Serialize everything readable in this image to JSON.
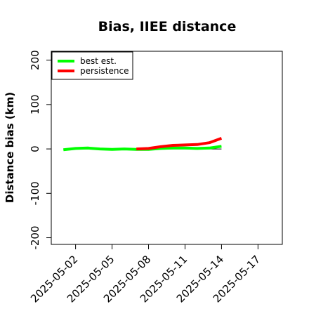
{
  "chart_data": {
    "type": "line",
    "title": "Bias, IIEE distance",
    "xlabel": "",
    "ylabel": "Distance bias (km)",
    "ylim": [
      -215,
      220
    ],
    "xlim": [
      "2025-04-30",
      "2025-05-19"
    ],
    "y_ticks": [
      -200,
      -100,
      0,
      100,
      200
    ],
    "x_ticks": [
      "2025-05-02",
      "2025-05-05",
      "2025-05-08",
      "2025-05-11",
      "2025-05-14",
      "2025-05-17"
    ],
    "legend_position": "top-left",
    "grid": false,
    "series": [
      {
        "name": "best est.",
        "color": "#00ff00",
        "x": [
          "2025-05-01",
          "2025-05-02",
          "2025-05-03",
          "2025-05-04",
          "2025-05-05",
          "2025-05-06",
          "2025-05-07",
          "2025-05-08",
          "2025-05-09",
          "2025-05-10",
          "2025-05-11",
          "2025-05-12",
          "2025-05-13",
          "2025-05-14"
        ],
        "values": [
          -2,
          1,
          2,
          0,
          -1,
          0,
          -1,
          -1,
          1,
          2,
          2,
          1,
          2,
          6
        ]
      },
      {
        "name": "persistence",
        "color": "#ff0000",
        "x": [
          "2025-05-07",
          "2025-05-08",
          "2025-05-09",
          "2025-05-10",
          "2025-05-11",
          "2025-05-12",
          "2025-05-13",
          "2025-05-14"
        ],
        "values": [
          0,
          1,
          5,
          8,
          9,
          10,
          14,
          24
        ]
      }
    ],
    "reference_line": {
      "color": "#000000",
      "x": [
        "2025-05-01",
        "2025-05-14"
      ],
      "values": [
        0,
        0
      ]
    }
  }
}
